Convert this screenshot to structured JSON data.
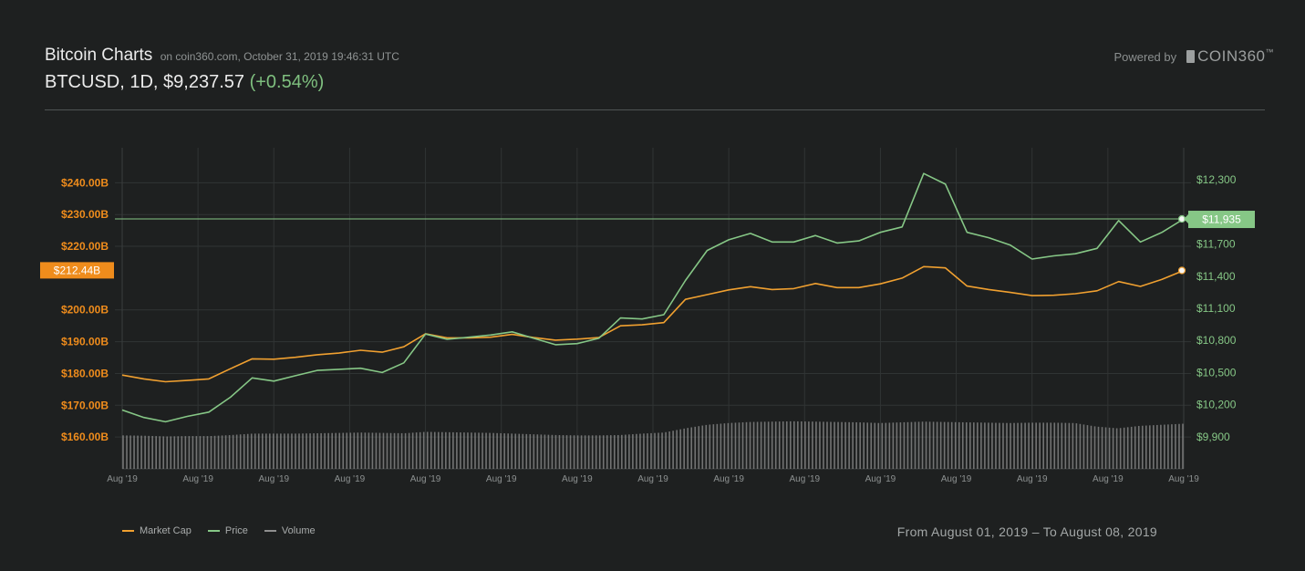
{
  "header": {
    "title": "Bitcoin Charts",
    "subtitle": "on coin360.com, October 31, 2019 19:46:31 UTC",
    "pair_line": "BTCUSD, 1D, $9,237.57",
    "change": "(+0.54%)",
    "powered_by_label": "Powered by",
    "logo_text": "COIN360",
    "logo_tm": "™"
  },
  "footer": {
    "range_text": "From August 01, 2019 – To August 08, 2019"
  },
  "colors": {
    "background": "#1e2020",
    "market_cap": "#f0a030",
    "price": "#86c786",
    "volume": "#8f8f8f",
    "grid": "#303434",
    "cap_badge": "#ef8c1c",
    "price_badge": "#86c786"
  },
  "chart_data": {
    "type": "line",
    "legend": [
      "Market Cap",
      "Price",
      "Volume"
    ],
    "legend_position": "bottom-left",
    "grid": true,
    "x_ticks": [
      "Aug '19",
      "Aug '19",
      "Aug '19",
      "Aug '19",
      "Aug '19",
      "Aug '19",
      "Aug '19",
      "Aug '19",
      "Aug '19",
      "Aug '19",
      "Aug '19",
      "Aug '19",
      "Aug '19",
      "Aug '19",
      "Aug '19"
    ],
    "left_axis": {
      "series": "Market Cap",
      "ticks": [
        "$160.00B",
        "$170.00B",
        "$180.00B",
        "$190.00B",
        "$200.00B",
        "$220.00B",
        "$230.00B",
        "$240.00B"
      ],
      "tick_values": [
        160,
        170,
        180,
        190,
        200,
        220,
        230,
        240
      ],
      "range": [
        150,
        251
      ],
      "current_label": "$212.44B",
      "current_value": 212.44
    },
    "right_axis": {
      "series": "Price",
      "ticks": [
        "$9,900",
        "$10,200",
        "$10,500",
        "$10,800",
        "$11,100",
        "$11,400",
        "$11,700",
        "$12,300"
      ],
      "tick_values": [
        9900,
        10200,
        10500,
        10800,
        11100,
        11400,
        11700,
        12300
      ],
      "range": [
        9600,
        12600
      ],
      "current_label": "$11,935",
      "current_value": 11935
    },
    "series": [
      {
        "name": "Market Cap",
        "axis": "left",
        "values": [
          179.5,
          178.3,
          177.4,
          177.8,
          178.3,
          181.5,
          184.6,
          184.5,
          185.1,
          185.9,
          186.4,
          187.3,
          186.7,
          188.4,
          192.5,
          191.2,
          191.2,
          191.4,
          192.3,
          191.3,
          190.5,
          190.8,
          191.3,
          195.0,
          195.3,
          196.0,
          203.3,
          204.8,
          206.3,
          207.3,
          206.4,
          206.7,
          208.3,
          207.0,
          207.0,
          208.2,
          210.0,
          213.6,
          213.2,
          207.5,
          206.4,
          205.5,
          204.5,
          204.6,
          205.1,
          206.0,
          208.9,
          207.4,
          209.6,
          212.4
        ]
      },
      {
        "name": "Price",
        "axis": "right",
        "values": [
          10150,
          10080,
          10040,
          10090,
          10130,
          10270,
          10450,
          10420,
          10470,
          10520,
          10530,
          10540,
          10500,
          10590,
          10860,
          10810,
          10830,
          10850,
          10880,
          10820,
          10760,
          10770,
          10820,
          11010,
          11000,
          11040,
          11360,
          11640,
          11740,
          11800,
          11720,
          11720,
          11780,
          11710,
          11730,
          11810,
          11860,
          12360,
          12260,
          11810,
          11760,
          11690,
          11560,
          11590,
          11610,
          11660,
          11920,
          11720,
          11810,
          11935
        ]
      },
      {
        "name": "Volume",
        "axis": "none",
        "values": [
          0.95,
          0.94,
          0.92,
          0.93,
          0.93,
          0.96,
          1.0,
          1.0,
          1.0,
          1.01,
          1.02,
          1.03,
          1.02,
          1.01,
          1.05,
          1.04,
          1.03,
          1.02,
          1.0,
          0.98,
          0.96,
          0.95,
          0.95,
          0.96,
          1.0,
          1.03,
          1.15,
          1.25,
          1.3,
          1.33,
          1.34,
          1.35,
          1.34,
          1.33,
          1.32,
          1.3,
          1.32,
          1.34,
          1.33,
          1.32,
          1.31,
          1.3,
          1.31,
          1.31,
          1.3,
          1.2,
          1.15,
          1.22,
          1.25,
          1.28
        ]
      }
    ]
  }
}
